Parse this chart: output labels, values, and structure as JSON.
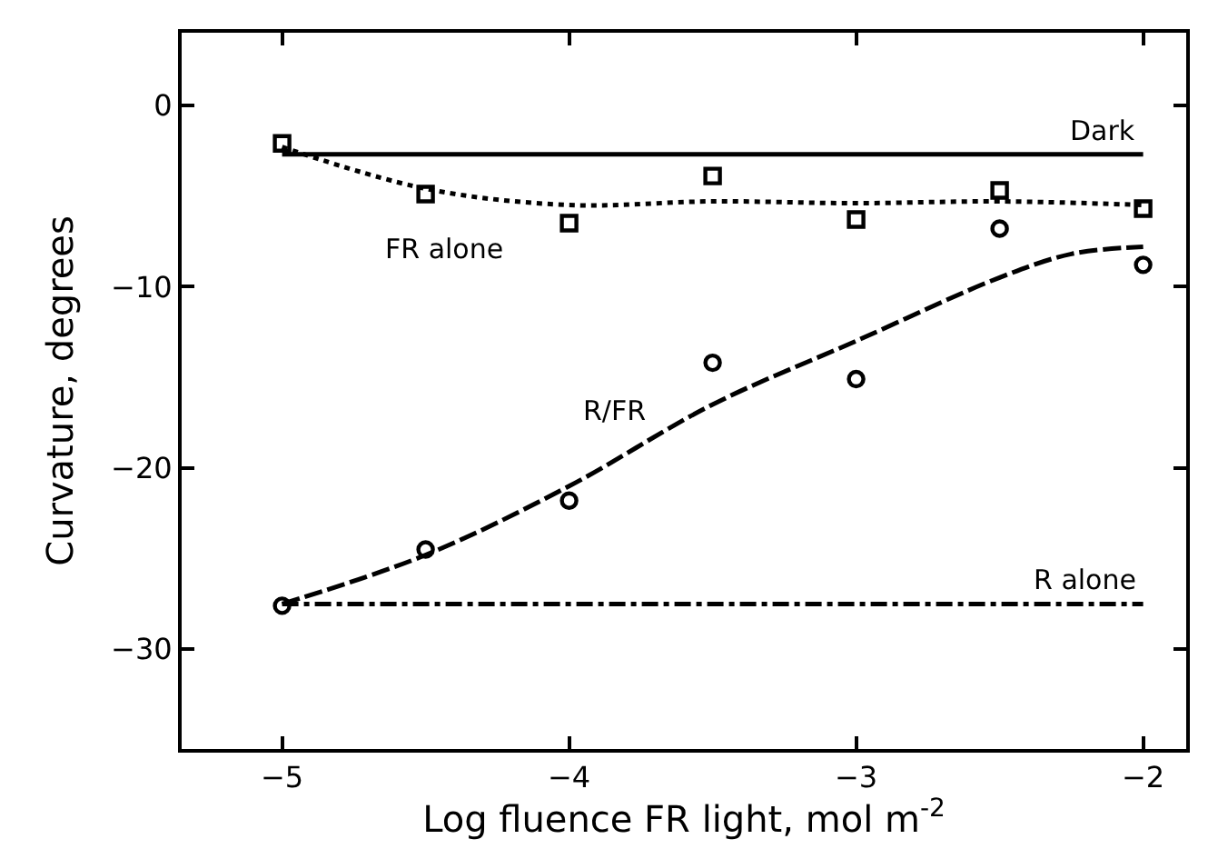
{
  "chart_data": {
    "type": "scatter",
    "xlabel": "Log fluence FR light, mol m$^{-2}$",
    "ylabel": "Curvature, degrees",
    "xlim": [
      -5.35,
      -1.85
    ],
    "ylim": [
      -35.5,
      4
    ],
    "xticks": [
      -5,
      -4,
      -3,
      -2
    ],
    "yticks": [
      0,
      -10,
      -20,
      -30
    ],
    "series": [
      {
        "name": "Dark",
        "type": "line",
        "color": "#000000",
        "line_style": "solid",
        "marker": "none",
        "x": [
          -5,
          -2
        ],
        "values": [
          -2.7,
          -2.7
        ]
      },
      {
        "name": "R alone",
        "type": "line",
        "color": "#000000",
        "line_style": "dashdot",
        "marker": "none",
        "x": [
          -5,
          -2
        ],
        "values": [
          -27.5,
          -27.5
        ]
      },
      {
        "color": "#000000",
        "marker": "square",
        "x": [
          -5,
          -4.5,
          -4,
          -3.5,
          -3,
          -2.5,
          -2
        ],
        "values": [
          -2.1,
          -4.9,
          -6.5,
          -3.9,
          -6.3,
          -4.7,
          -5.7
        ]
      },
      {
        "name": "FR alone",
        "type": "line",
        "color": "#000000",
        "line_style": "dotted",
        "marker": "none",
        "x": [
          -5,
          -4.5,
          -4,
          -3.5,
          -3,
          -2.5,
          -2
        ],
        "values": [
          -2.3,
          -4.6,
          -5.5,
          -5.3,
          -5.4,
          -5.3,
          -5.5
        ]
      },
      {
        "color": "#000000",
        "marker": "circle",
        "x": [
          -5,
          -4.5,
          -4,
          -3.5,
          -3,
          -2.5,
          -2
        ],
        "values": [
          -27.6,
          -24.5,
          -21.8,
          -14.2,
          -15.1,
          -6.8,
          -8.8
        ]
      },
      {
        "name": "R/FR",
        "type": "line",
        "color": "#000000",
        "line_style": "dashed",
        "marker": "none",
        "x": [
          -5,
          -4.5,
          -4,
          -3.5,
          -3,
          -2.5,
          -2.25,
          -2
        ],
        "values": [
          -27.5,
          -24.8,
          -21,
          -16.5,
          -13,
          -9.5,
          -8.2,
          -7.8
        ]
      }
    ]
  }
}
